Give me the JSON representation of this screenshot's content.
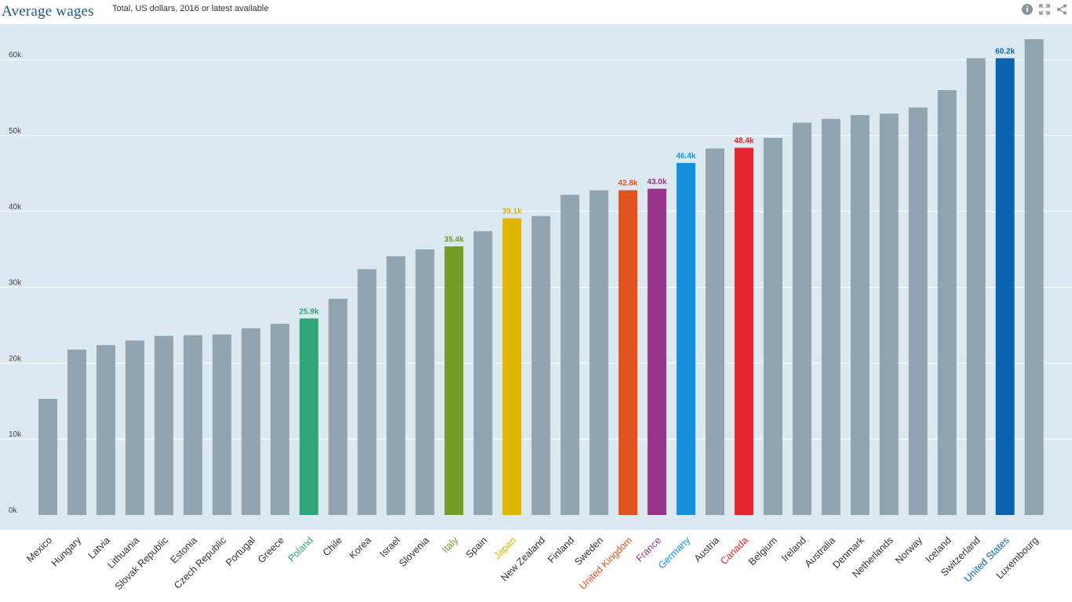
{
  "header": {
    "title": "Average wages",
    "subtitle": "Total, US dollars, 2016 or latest available",
    "icons": [
      "info-icon",
      "expand-icon",
      "share-icon"
    ]
  },
  "colors": {
    "plot_background": "#dde9f1",
    "default_bar": "#90a5b1",
    "grid": "#ffffff",
    "tick_text": "#444444"
  },
  "chart_data": {
    "type": "bar",
    "title": "Average wages",
    "subtitle": "Total, US dollars, 2016 or latest available",
    "xlabel": "",
    "ylabel": "",
    "ylim": [
      0,
      64000
    ],
    "yticks": [
      0,
      10000,
      20000,
      30000,
      40000,
      50000,
      60000
    ],
    "ytick_labels": [
      "0k",
      "10k",
      "20k",
      "30k",
      "40k",
      "50k",
      "60k"
    ],
    "grid": true,
    "categories": [
      "Mexico",
      "Hungary",
      "Latvia",
      "Lithuania",
      "Slovak Republic",
      "Estonia",
      "Czech Republic",
      "Portugal",
      "Greece",
      "Poland",
      "Chile",
      "Korea",
      "Israel",
      "Slovenia",
      "Italy",
      "Spain",
      "Japan",
      "New Zealand",
      "Finland",
      "Sweden",
      "United Kingdom",
      "France",
      "Germany",
      "Austria",
      "Canada",
      "Belgium",
      "Ireland",
      "Australia",
      "Denmark",
      "Netherlands",
      "Norway",
      "Iceland",
      "Switzerland",
      "United States",
      "Luxembourg"
    ],
    "values": [
      15300,
      21800,
      22400,
      23000,
      23600,
      23700,
      23800,
      24600,
      25200,
      25900,
      28500,
      32400,
      34100,
      35000,
      35400,
      37400,
      39100,
      39400,
      42200,
      42800,
      42800,
      43000,
      46400,
      48300,
      48400,
      49700,
      51700,
      52200,
      52700,
      52900,
      53700,
      56000,
      60200,
      60200,
      62700
    ],
    "highlights": [
      {
        "country": "Poland",
        "label": "25.9k",
        "color": "#2fa676"
      },
      {
        "country": "Italy",
        "label": "35.4k",
        "color": "#739c26"
      },
      {
        "country": "Japan",
        "label": "39.1k",
        "color": "#e1b400"
      },
      {
        "country": "United Kingdom",
        "label": "42.8k",
        "color": "#e0531f"
      },
      {
        "country": "France",
        "label": "43.0k",
        "color": "#99348b"
      },
      {
        "country": "Germany",
        "label": "46.4k",
        "color": "#1490dc"
      },
      {
        "country": "Canada",
        "label": "48.4k",
        "color": "#e5262f"
      },
      {
        "country": "United States",
        "label": "60.2k",
        "color": "#0c64b0"
      }
    ]
  }
}
